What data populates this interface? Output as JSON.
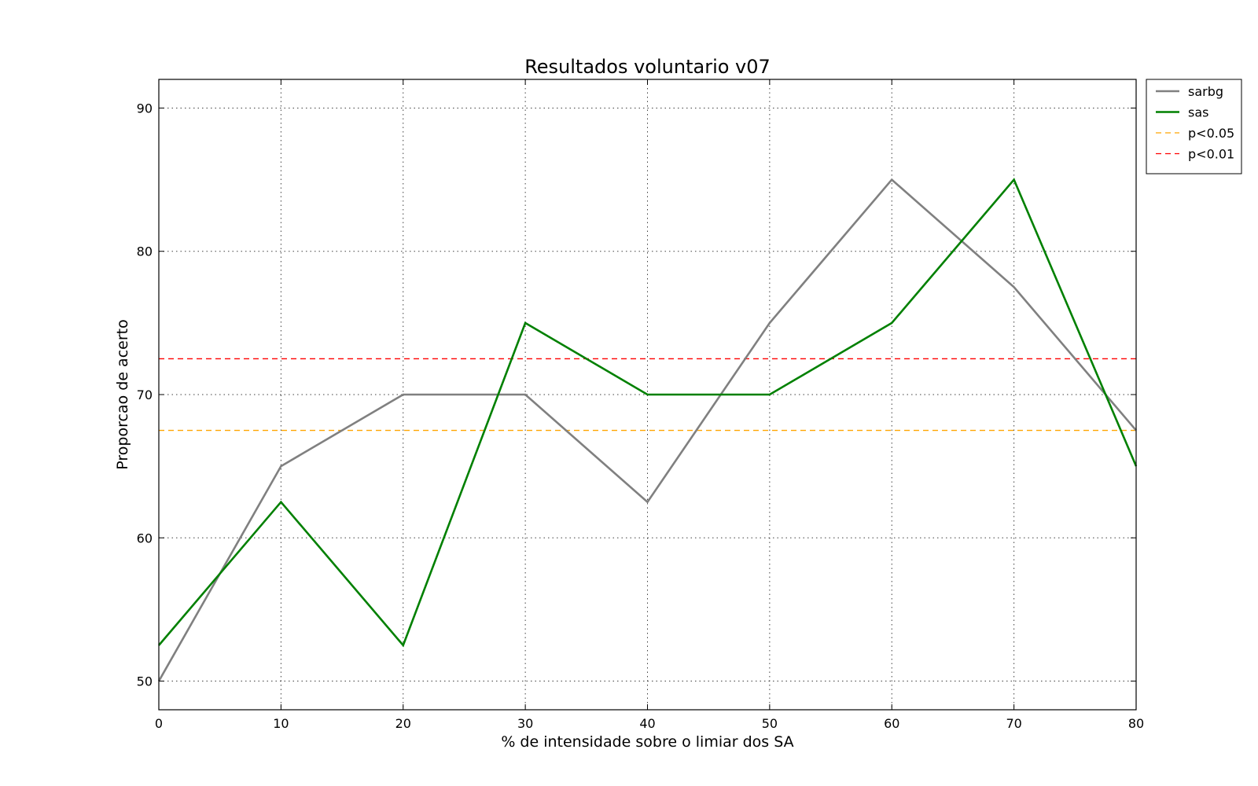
{
  "chart_data": {
    "type": "line",
    "title": "Resultados voluntario v07",
    "xlabel": "% de intensidade sobre o limiar dos SA",
    "ylabel": "Proporcao de acerto",
    "xlim": [
      0,
      80
    ],
    "ylim": [
      48,
      92
    ],
    "xticks": [
      0,
      10,
      20,
      30,
      40,
      50,
      60,
      70,
      80
    ],
    "yticks": [
      50,
      60,
      70,
      80,
      90
    ],
    "grid": true,
    "legend_position": "outside top-right",
    "x": [
      0,
      10,
      20,
      30,
      40,
      50,
      60,
      70,
      80
    ],
    "series": [
      {
        "name": "sarbg",
        "color": "#808080",
        "style": "solid",
        "values": [
          50,
          65,
          70,
          70,
          62.5,
          75,
          85,
          77.5,
          67.5
        ]
      },
      {
        "name": "sas",
        "color": "#008000",
        "style": "solid",
        "values": [
          52.5,
          62.5,
          52.5,
          75,
          70,
          70,
          75,
          85,
          65
        ]
      }
    ],
    "reference_lines": [
      {
        "name": "p<0.05",
        "color": "#ffa500",
        "style": "dashed",
        "y": 67.5
      },
      {
        "name": "p<0.01",
        "color": "#ff0000",
        "style": "dashed",
        "y": 72.5
      }
    ]
  }
}
